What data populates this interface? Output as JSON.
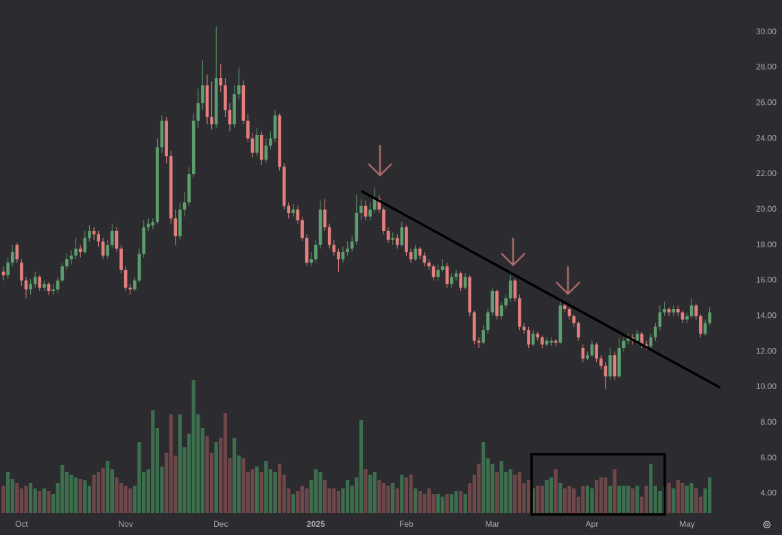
{
  "chart_data": {
    "type": "candlestick",
    "up_color": "#5e9e6e",
    "down_color": "#e3807e",
    "up_volume_color": "#3d6e4d",
    "down_volume_color": "#6e4749",
    "xticks": [
      {
        "value": 4,
        "label": "Oct"
      },
      {
        "value": 27,
        "label": "Nov"
      },
      {
        "value": 48,
        "label": "Dec"
      },
      {
        "value": 69,
        "label": "2025"
      },
      {
        "value": 89,
        "label": "Feb"
      },
      {
        "value": 108,
        "label": "Mar"
      },
      {
        "value": 130,
        "label": "Apr"
      },
      {
        "value": 151,
        "label": "May"
      }
    ],
    "ylim": [
      2.9,
      31.8
    ],
    "yticks": [
      {
        "value": 4,
        "label": "4.00"
      },
      {
        "value": 6,
        "label": "6.00"
      },
      {
        "value": 8,
        "label": "8.00"
      },
      {
        "value": 10,
        "label": "10.00"
      },
      {
        "value": 12,
        "label": "12.00"
      },
      {
        "value": 14,
        "label": "14.00"
      },
      {
        "value": 16,
        "label": "16.00"
      },
      {
        "value": 18,
        "label": "18.00"
      },
      {
        "value": 20,
        "label": "20.00"
      },
      {
        "value": 22,
        "label": "22.00"
      },
      {
        "value": 24,
        "label": "24.00"
      },
      {
        "value": 26,
        "label": "26.00"
      },
      {
        "value": 28,
        "label": "28.00"
      },
      {
        "value": 30,
        "label": "30.00"
      }
    ],
    "vlim": [
      0,
      100
    ],
    "ohlc": [
      [
        16.5,
        16.8,
        16.0,
        16.3
      ],
      [
        16.3,
        17.3,
        16.1,
        17.0
      ],
      [
        17.0,
        18.0,
        16.8,
        17.6
      ],
      [
        18.0,
        18.1,
        17.0,
        17.2
      ],
      [
        17.0,
        17.2,
        15.7,
        16.0
      ],
      [
        16.0,
        16.2,
        15.0,
        15.5
      ],
      [
        15.5,
        16.1,
        15.2,
        15.8
      ],
      [
        15.8,
        16.5,
        15.6,
        16.2
      ],
      [
        16.2,
        16.3,
        15.4,
        15.6
      ],
      [
        15.6,
        16.0,
        15.4,
        15.8
      ],
      [
        15.8,
        15.9,
        15.2,
        15.4
      ],
      [
        15.4,
        15.8,
        15.2,
        15.5
      ],
      [
        15.5,
        16.2,
        15.3,
        16.0
      ],
      [
        16.0,
        17.0,
        15.9,
        16.8
      ],
      [
        16.8,
        17.5,
        16.6,
        17.2
      ],
      [
        17.2,
        17.7,
        16.9,
        17.4
      ],
      [
        17.4,
        18.4,
        17.2,
        17.8
      ],
      [
        17.8,
        18.0,
        17.3,
        17.6
      ],
      [
        17.6,
        18.8,
        17.5,
        18.4
      ],
      [
        18.4,
        19.1,
        18.2,
        18.8
      ],
      [
        18.8,
        19.0,
        18.3,
        18.6
      ],
      [
        18.6,
        18.8,
        17.9,
        18.2
      ],
      [
        18.2,
        18.4,
        17.2,
        17.4
      ],
      [
        17.4,
        18.3,
        17.2,
        18.0
      ],
      [
        18.0,
        19.2,
        17.8,
        18.8
      ],
      [
        18.8,
        19.0,
        17.6,
        17.8
      ],
      [
        17.8,
        18.0,
        16.4,
        16.6
      ],
      [
        16.6,
        16.8,
        15.4,
        15.6
      ],
      [
        15.6,
        15.8,
        15.2,
        15.5
      ],
      [
        15.5,
        16.2,
        15.4,
        16.0
      ],
      [
        16.0,
        17.8,
        15.9,
        17.5
      ],
      [
        17.5,
        19.4,
        17.3,
        19.0
      ],
      [
        19.0,
        19.5,
        18.8,
        19.2
      ],
      [
        19.1,
        19.5,
        18.9,
        19.3
      ],
      [
        19.3,
        24.0,
        19.2,
        23.5
      ],
      [
        23.5,
        25.3,
        23.2,
        25.0
      ],
      [
        25.0,
        25.2,
        22.6,
        23.0
      ],
      [
        23.0,
        23.3,
        19.2,
        19.5
      ],
      [
        19.5,
        20.0,
        18.0,
        18.5
      ],
      [
        18.5,
        20.4,
        18.3,
        20.0
      ],
      [
        20.0,
        21.0,
        19.6,
        20.4
      ],
      [
        20.4,
        22.4,
        20.2,
        22.0
      ],
      [
        22.0,
        25.4,
        21.8,
        25.0
      ],
      [
        25.0,
        26.8,
        24.6,
        26.0
      ],
      [
        26.0,
        28.4,
        25.6,
        27.0
      ],
      [
        27.0,
        27.6,
        24.8,
        25.2
      ],
      [
        25.2,
        27.2,
        24.5,
        24.8
      ],
      [
        24.8,
        30.3,
        24.6,
        27.4
      ],
      [
        27.4,
        28.2,
        26.6,
        27.0
      ],
      [
        27.0,
        27.4,
        25.2,
        25.6
      ],
      [
        25.6,
        26.0,
        24.4,
        24.8
      ],
      [
        24.8,
        27.0,
        24.6,
        26.5
      ],
      [
        26.5,
        28.0,
        26.2,
        27.0
      ],
      [
        27.0,
        27.3,
        24.8,
        25.0
      ],
      [
        25.0,
        25.4,
        23.8,
        24.0
      ],
      [
        24.0,
        24.3,
        22.9,
        23.2
      ],
      [
        23.2,
        24.6,
        23.0,
        24.2
      ],
      [
        24.2,
        24.4,
        22.5,
        22.8
      ],
      [
        22.8,
        24.0,
        22.6,
        23.6
      ],
      [
        23.6,
        24.4,
        23.4,
        24.0
      ],
      [
        24.0,
        25.6,
        23.8,
        25.3
      ],
      [
        25.3,
        25.4,
        22.2,
        22.4
      ],
      [
        22.4,
        22.6,
        20.0,
        20.2
      ],
      [
        20.2,
        20.4,
        19.5,
        19.8
      ],
      [
        19.8,
        20.3,
        19.6,
        20.0
      ],
      [
        20.0,
        20.2,
        19.2,
        19.4
      ],
      [
        19.4,
        19.6,
        18.2,
        18.4
      ],
      [
        18.4,
        18.6,
        16.8,
        17.0
      ],
      [
        17.0,
        17.6,
        16.8,
        17.2
      ],
      [
        17.2,
        18.3,
        17.0,
        18.0
      ],
      [
        18.0,
        20.5,
        17.8,
        20.0
      ],
      [
        20.0,
        20.6,
        18.8,
        19.0
      ],
      [
        19.0,
        19.2,
        17.8,
        18.0
      ],
      [
        18.0,
        18.3,
        17.4,
        17.6
      ],
      [
        17.6,
        17.8,
        16.5,
        17.2
      ],
      [
        17.2,
        17.9,
        17.0,
        17.6
      ],
      [
        17.6,
        18.2,
        17.4,
        17.8
      ],
      [
        17.8,
        18.5,
        17.6,
        18.2
      ],
      [
        18.2,
        20.8,
        18.0,
        19.8
      ],
      [
        19.8,
        20.6,
        19.4,
        20.2
      ],
      [
        20.2,
        20.5,
        19.4,
        19.6
      ],
      [
        19.6,
        20.4,
        19.4,
        20.0
      ],
      [
        20.0,
        21.2,
        19.8,
        20.6
      ],
      [
        20.6,
        20.8,
        19.8,
        20.0
      ],
      [
        20.0,
        20.1,
        18.6,
        18.8
      ],
      [
        18.8,
        19.0,
        18.1,
        18.3
      ],
      [
        18.3,
        18.7,
        18.0,
        18.4
      ],
      [
        18.4,
        18.6,
        17.8,
        18.0
      ],
      [
        18.0,
        19.3,
        17.9,
        19.0
      ],
      [
        19.0,
        19.1,
        17.4,
        17.6
      ],
      [
        17.6,
        17.8,
        17.0,
        17.2
      ],
      [
        17.2,
        18.0,
        17.1,
        17.8
      ],
      [
        17.8,
        17.9,
        17.2,
        17.4
      ],
      [
        17.4,
        17.6,
        16.8,
        17.0
      ],
      [
        17.0,
        17.2,
        16.6,
        16.8
      ],
      [
        16.8,
        16.9,
        16.0,
        16.2
      ],
      [
        16.2,
        16.9,
        16.0,
        16.6
      ],
      [
        16.6,
        17.2,
        16.5,
        16.8
      ],
      [
        16.8,
        17.0,
        15.6,
        15.8
      ],
      [
        15.8,
        16.4,
        15.6,
        16.2
      ],
      [
        16.2,
        16.6,
        16.0,
        16.4
      ],
      [
        16.4,
        16.5,
        15.4,
        15.6
      ],
      [
        15.6,
        16.4,
        15.5,
        16.2
      ],
      [
        16.2,
        16.3,
        14.0,
        14.2
      ],
      [
        14.2,
        14.3,
        12.4,
        12.6
      ],
      [
        12.6,
        12.8,
        12.2,
        12.5
      ],
      [
        12.5,
        13.5,
        12.4,
        13.2
      ],
      [
        13.2,
        14.4,
        13.0,
        14.2
      ],
      [
        14.2,
        15.6,
        14.0,
        15.4
      ],
      [
        15.4,
        15.5,
        13.8,
        14.0
      ],
      [
        14.0,
        14.8,
        13.8,
        14.6
      ],
      [
        14.6,
        15.2,
        14.4,
        15.0
      ],
      [
        15.0,
        16.3,
        14.8,
        16.0
      ],
      [
        16.0,
        16.1,
        14.8,
        15.0
      ],
      [
        15.0,
        15.2,
        13.2,
        13.4
      ],
      [
        13.4,
        13.6,
        13.0,
        13.2
      ],
      [
        13.2,
        13.4,
        12.2,
        12.4
      ],
      [
        12.4,
        13.2,
        12.3,
        13.0
      ],
      [
        13.0,
        13.1,
        12.6,
        12.8
      ],
      [
        12.8,
        12.9,
        12.2,
        12.4
      ],
      [
        12.4,
        12.8,
        12.3,
        12.6
      ],
      [
        12.5,
        12.8,
        12.3,
        12.6
      ],
      [
        12.6,
        12.7,
        12.3,
        12.5
      ],
      [
        12.5,
        14.8,
        12.4,
        14.6
      ],
      [
        14.6,
        14.8,
        14.2,
        14.4
      ],
      [
        14.4,
        14.5,
        13.8,
        14.0
      ],
      [
        14.0,
        14.1,
        13.4,
        13.6
      ],
      [
        13.6,
        13.7,
        12.6,
        12.8
      ],
      [
        12.2,
        12.4,
        11.4,
        11.6
      ],
      [
        11.6,
        12.0,
        11.5,
        11.8
      ],
      [
        11.8,
        12.6,
        11.7,
        12.4
      ],
      [
        12.4,
        12.5,
        11.4,
        11.6
      ],
      [
        11.6,
        11.8,
        11.0,
        11.2
      ],
      [
        11.2,
        11.4,
        9.9,
        10.6
      ],
      [
        10.6,
        12.2,
        10.4,
        11.8
      ],
      [
        11.8,
        12.0,
        10.4,
        10.6
      ],
      [
        10.6,
        12.8,
        10.5,
        12.2
      ],
      [
        12.2,
        12.8,
        12.0,
        12.6
      ],
      [
        12.6,
        13.0,
        12.4,
        12.8
      ],
      [
        12.8,
        13.0,
        12.4,
        12.6
      ],
      [
        12.6,
        13.2,
        12.4,
        13.0
      ],
      [
        13.0,
        13.1,
        12.2,
        12.4
      ],
      [
        12.4,
        12.6,
        12.1,
        12.3
      ],
      [
        12.3,
        13.0,
        12.2,
        12.8
      ],
      [
        12.8,
        13.6,
        12.6,
        13.4
      ],
      [
        13.4,
        14.6,
        13.2,
        14.2
      ],
      [
        14.2,
        14.8,
        14.0,
        14.4
      ],
      [
        14.4,
        14.5,
        14.0,
        14.2
      ],
      [
        14.2,
        14.6,
        14.0,
        14.4
      ],
      [
        14.4,
        14.6,
        14.0,
        14.2
      ],
      [
        14.2,
        14.3,
        13.6,
        13.8
      ],
      [
        13.8,
        14.2,
        13.6,
        14.0
      ],
      [
        14.0,
        15.0,
        13.9,
        14.6
      ],
      [
        14.6,
        14.7,
        13.8,
        14.0
      ],
      [
        14.0,
        14.1,
        12.8,
        13.0
      ],
      [
        13.0,
        13.8,
        12.9,
        13.6
      ],
      [
        13.6,
        14.5,
        13.5,
        14.2
      ]
    ],
    "volume": [
      20,
      30,
      25,
      22,
      18,
      20,
      22,
      18,
      16,
      18,
      16,
      14,
      22,
      35,
      30,
      28,
      26,
      25,
      24,
      20,
      28,
      30,
      33,
      38,
      32,
      26,
      22,
      20,
      18,
      20,
      52,
      30,
      32,
      75,
      62,
      34,
      44,
      72,
      42,
      72,
      48,
      58,
      97,
      72,
      62,
      56,
      44,
      52,
      55,
      73,
      40,
      55,
      42,
      40,
      30,
      32,
      34,
      30,
      38,
      32,
      30,
      36,
      28,
      18,
      14,
      16,
      20,
      18,
      24,
      32,
      30,
      24,
      18,
      18,
      16,
      18,
      24,
      20,
      26,
      68,
      32,
      28,
      30,
      24,
      22,
      20,
      22,
      18,
      28,
      26,
      28,
      18,
      16,
      14,
      18,
      14,
      14,
      12,
      14,
      14,
      16,
      16,
      14,
      22,
      28,
      36,
      52,
      40,
      36,
      30,
      38,
      30,
      32,
      28,
      30,
      22,
      24,
      18,
      20,
      20,
      24,
      26,
      32,
      22,
      18,
      20,
      18,
      12,
      20,
      20,
      18,
      24,
      26,
      26,
      20,
      32,
      20,
      20,
      20,
      18,
      20,
      12,
      20,
      36,
      20,
      16,
      20,
      22,
      18,
      24,
      22,
      20,
      22,
      18,
      12,
      18,
      26
    ]
  }
}
